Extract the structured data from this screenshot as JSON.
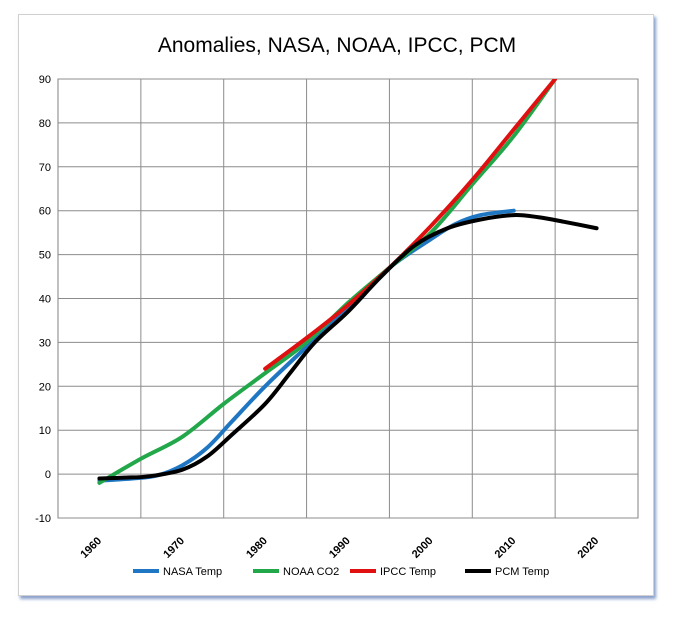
{
  "chart_data": {
    "type": "line",
    "title": "Anomalies, NASA, NOAA, IPCC, PCM",
    "xlabel": "",
    "ylabel": "",
    "xlim": [
      1955,
      2025
    ],
    "ylim": [
      -10,
      90
    ],
    "x_ticks": [
      "1960",
      "1970",
      "1980",
      "1990",
      "2000",
      "2010",
      "2020"
    ],
    "y_ticks": [
      "-10",
      "0",
      "10",
      "20",
      "30",
      "40",
      "50",
      "60",
      "70",
      "80",
      "90"
    ],
    "grid": true,
    "legend_position": "bottom",
    "series": [
      {
        "name": "NASA Temp",
        "color": "#1f77c4",
        "x": [
          1960,
          1964,
          1967,
          1970,
          1973,
          1976,
          1980,
          1985,
          1990,
          1995,
          2000,
          2003,
          2006,
          2010
        ],
        "y": [
          -1.5,
          -1,
          -0.3,
          2,
          6,
          12,
          20,
          29,
          38,
          47,
          53.5,
          57,
          59,
          60
        ]
      },
      {
        "name": "NOAA CO2",
        "color": "#22a84a",
        "x": [
          1960,
          1965,
          1970,
          1975,
          1980,
          1985,
          1990,
          1995,
          2000,
          2005,
          2010,
          2015
        ],
        "y": [
          -2,
          3.5,
          8.5,
          16,
          23,
          30,
          39,
          47,
          55,
          66,
          77,
          90
        ]
      },
      {
        "name": "IPCC Temp",
        "color": "#e01010",
        "x": [
          1980,
          1985,
          1990,
          1995,
          2000,
          2005,
          2010,
          2015
        ],
        "y": [
          24,
          31,
          38.5,
          47,
          56.5,
          67,
          78.5,
          90
        ]
      },
      {
        "name": "PCM Temp",
        "color": "#000000",
        "x": [
          1960,
          1963,
          1966,
          1970,
          1973,
          1976,
          1980,
          1983,
          1986,
          1990,
          1994,
          1998,
          2002,
          2006,
          2010,
          2013,
          2016,
          2020
        ],
        "y": [
          -1,
          -0.8,
          -0.5,
          1,
          4,
          9,
          16,
          23,
          30,
          37,
          45,
          52,
          56,
          58,
          59,
          58.5,
          57.5,
          56
        ]
      }
    ]
  }
}
